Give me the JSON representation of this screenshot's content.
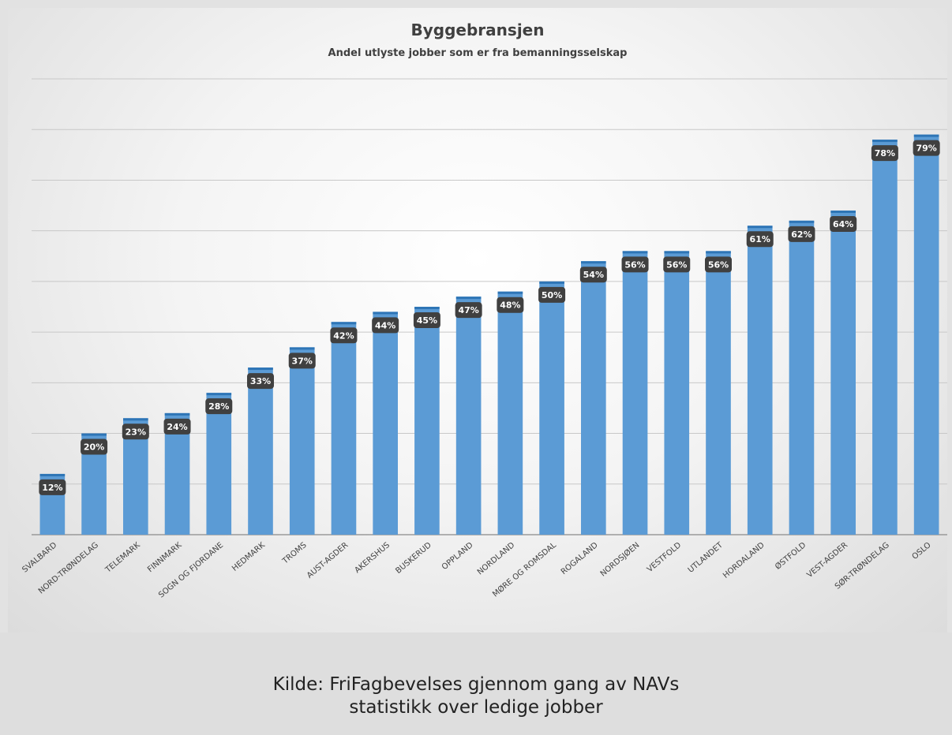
{
  "chart_data": {
    "type": "bar",
    "title": "Byggebransjen",
    "subtitle": "Andel utlyste jobber som er fra bemanningsselskap",
    "categories": [
      "SVALBARD",
      "NORD-TRØNDELAG",
      "TELEMARK",
      "FINNMARK",
      "SOGN OG FJORDANE",
      "HEDMARK",
      "TROMS",
      "AUST-AGDER",
      "AKERSHUS",
      "BUSKERUD",
      "OPPLAND",
      "NORDLAND",
      "MØRE OG ROMSDAL",
      "ROGALAND",
      "NORDSJØEN",
      "VESTFOLD",
      "UTLANDET",
      "HORDALAND",
      "ØSTFOLD",
      "VEST-AGDER",
      "SØR-TRØNDELAG",
      "OSLO"
    ],
    "values": [
      12,
      20,
      23,
      24,
      28,
      33,
      37,
      42,
      44,
      45,
      47,
      48,
      50,
      54,
      56,
      56,
      56,
      61,
      62,
      64,
      78,
      79
    ],
    "data_labels": [
      "12%",
      "20%",
      "23%",
      "24%",
      "28%",
      "33%",
      "37%",
      "42%",
      "44%",
      "45%",
      "47%",
      "48%",
      "50%",
      "54%",
      "56%",
      "56%",
      "56%",
      "61%",
      "62%",
      "64%",
      "78%",
      "79%"
    ],
    "ylim": [
      0,
      90
    ],
    "y_unit": "%",
    "grid": true,
    "bar_color": "#5b9bd5",
    "label_bg_color": "#404040"
  },
  "source_text": "Kilde: FriFagbevelses gjennom gang av NAVs\nstatistikk over ledige jobber"
}
